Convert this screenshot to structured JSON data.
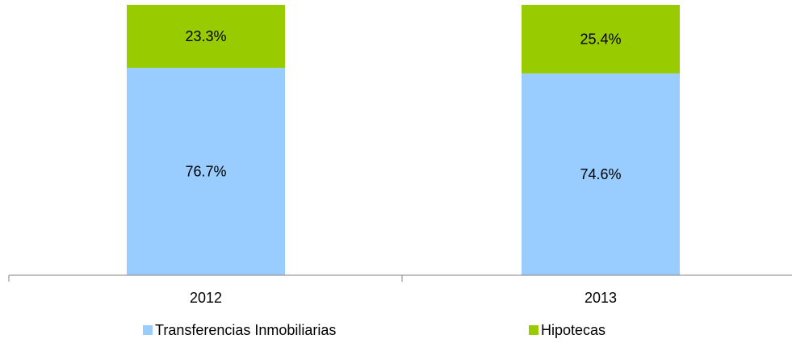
{
  "chart_data": {
    "type": "bar",
    "stacked": true,
    "percent_stacked": true,
    "categories": [
      "2012",
      "2013"
    ],
    "series": [
      {
        "name": "Transferencias Inmobiliarias",
        "values": [
          76.7,
          74.6
        ],
        "labels": [
          "76.7%",
          "74.6%"
        ],
        "color": "#99CCFF"
      },
      {
        "name": "Hipotecas",
        "values": [
          23.3,
          25.4
        ],
        "labels": [
          "23.3%",
          "25.4%"
        ],
        "color": "#99CC00"
      }
    ],
    "ylim": [
      0,
      100
    ],
    "grid": false,
    "legend_position": "bottom"
  }
}
